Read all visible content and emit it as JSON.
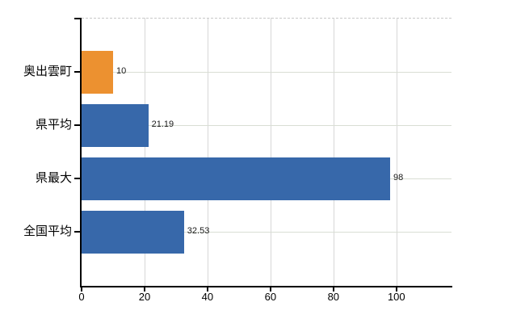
{
  "chart_data": {
    "type": "bar",
    "orientation": "horizontal",
    "title": "",
    "xlabel": "",
    "ylabel": "",
    "categories": [
      "奥出雲町",
      "県平均",
      "県最大",
      "全国平均"
    ],
    "values": [
      10,
      21.19,
      98,
      32.53
    ],
    "value_labels": [
      "10",
      "21.19",
      "98",
      "32.53"
    ],
    "bar_colors": [
      "#ec9130",
      "#3768aa",
      "#3768aa",
      "#3768aa"
    ],
    "highlight_color": "#ec9130",
    "base_color": "#3768aa",
    "x_tick_labels": [
      "0",
      "20",
      "40",
      "60",
      "80",
      "100"
    ],
    "x_tick_values": [
      0,
      20,
      40,
      60,
      80,
      100
    ],
    "xlim": [
      0,
      117.5
    ],
    "grid": "on",
    "legend": "none",
    "background_color": "#ffffff",
    "axis_color": "#000000",
    "text_color": "#000000",
    "value_label_color": "#1a1a1a",
    "gridline_color_vertical": "#d7d7d7",
    "gridline_color_horizontal": "#d9ded4",
    "plot_top_border_color": "#c9c9c9"
  }
}
